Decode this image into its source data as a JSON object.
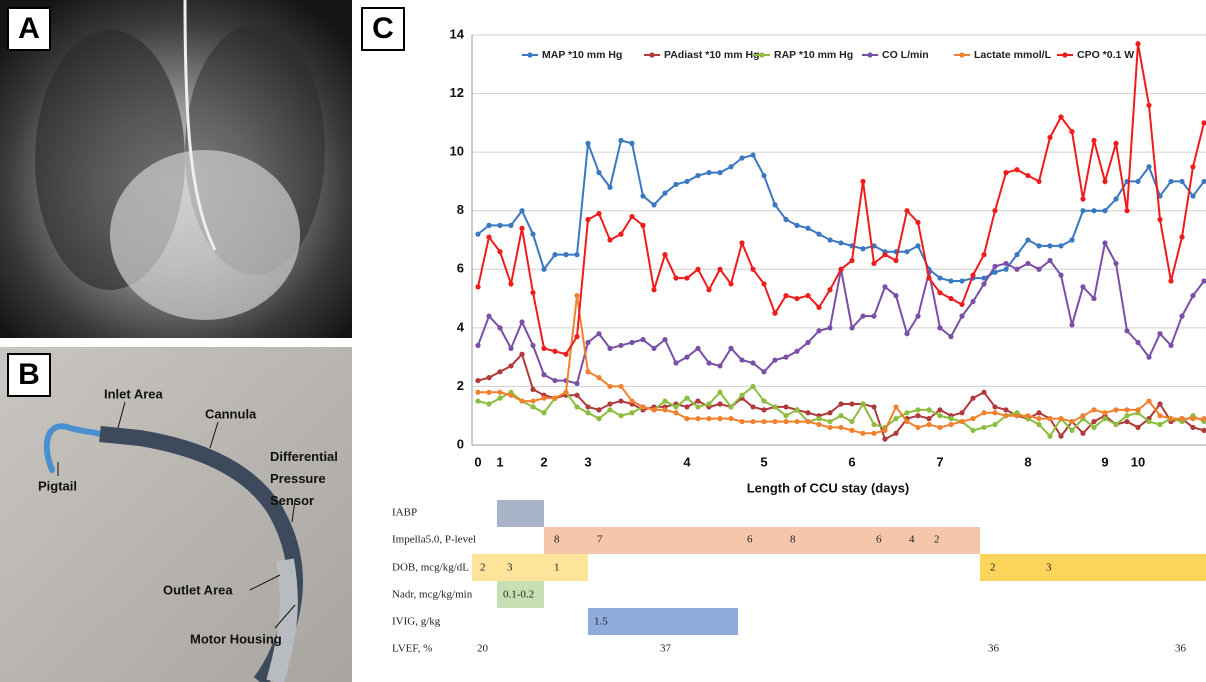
{
  "panels": {
    "a": {
      "label": "A"
    },
    "b": {
      "label": "B",
      "annotations": [
        "Inlet Area",
        "Cannula",
        "Differential Pressure Sensor",
        "Pigtail",
        "Outlet Area",
        "Motor Housing"
      ]
    },
    "c": {
      "label": "C"
    }
  },
  "chart_data": {
    "type": "line",
    "x_label": "Length of CCU stay (days)",
    "categories": [
      "0",
      null,
      "1",
      null,
      null,
      null,
      "2",
      null,
      null,
      null,
      "3",
      null,
      null,
      null,
      null,
      null,
      null,
      null,
      null,
      "4",
      null,
      null,
      null,
      null,
      null,
      null,
      "5",
      null,
      null,
      null,
      null,
      null,
      null,
      null,
      "6",
      null,
      null,
      null,
      null,
      null,
      null,
      null,
      "7",
      null,
      null,
      null,
      null,
      null,
      null,
      null,
      "8",
      null,
      null,
      null,
      null,
      null,
      null,
      "9",
      null,
      null,
      "10",
      null,
      null,
      null,
      null,
      null,
      null
    ],
    "ylim": [
      0,
      14
    ],
    "yticks": [
      0,
      2,
      4,
      6,
      8,
      10,
      12,
      14
    ],
    "grid": true,
    "legend": "top",
    "series": [
      {
        "name": "MAP *10 mm Hg",
        "color": "#3a78c2",
        "values": [
          7.2,
          7.5,
          7.5,
          7.5,
          8.0,
          7.2,
          6.0,
          6.5,
          6.5,
          6.5,
          10.3,
          9.3,
          8.8,
          10.4,
          10.3,
          8.5,
          8.2,
          8.6,
          8.9,
          9.0,
          9.2,
          9.3,
          9.3,
          9.5,
          9.8,
          9.9,
          9.2,
          8.2,
          7.7,
          7.5,
          7.4,
          7.2,
          7.0,
          6.9,
          6.8,
          6.7,
          6.8,
          6.6,
          6.6,
          6.6,
          6.8,
          6.0,
          5.7,
          5.6,
          5.6,
          5.7,
          5.7,
          5.9,
          6.0,
          6.5,
          7.0,
          6.8,
          6.8,
          6.8,
          7.0,
          8.0,
          8.0,
          8.0,
          8.4,
          9.0,
          9.0,
          9.5,
          8.5,
          9.0,
          9.0,
          8.5,
          9.0
        ]
      },
      {
        "name": "PAdiast *10 mm Hg",
        "color": "#b03a3a",
        "values": [
          2.2,
          2.3,
          2.5,
          2.7,
          3.1,
          1.9,
          1.7,
          1.6,
          1.7,
          1.7,
          1.3,
          1.2,
          1.4,
          1.5,
          1.4,
          1.2,
          1.3,
          1.3,
          1.4,
          1.3,
          1.5,
          1.3,
          1.4,
          1.3,
          1.6,
          1.3,
          1.2,
          1.3,
          1.3,
          1.2,
          1.1,
          1.0,
          1.1,
          1.4,
          1.4,
          1.4,
          1.3,
          0.2,
          0.4,
          0.9,
          1.0,
          0.9,
          1.2,
          1.0,
          1.1,
          1.6,
          1.8,
          1.3,
          1.2,
          1.0,
          0.9,
          1.1,
          0.9,
          0.3,
          0.8,
          0.4,
          0.8,
          1.0,
          0.7,
          0.8,
          0.6,
          0.9,
          1.4,
          0.8,
          0.9,
          0.6,
          0.5
        ]
      },
      {
        "name": "RAP *10 mm Hg",
        "color": "#8cbd3f",
        "values": [
          1.5,
          1.4,
          1.6,
          1.8,
          1.5,
          1.3,
          1.1,
          1.6,
          1.8,
          1.3,
          1.1,
          0.9,
          1.2,
          1.0,
          1.1,
          1.3,
          1.2,
          1.5,
          1.3,
          1.6,
          1.3,
          1.4,
          1.8,
          1.3,
          1.7,
          2.0,
          1.5,
          1.3,
          1.0,
          1.2,
          0.8,
          0.9,
          0.8,
          1.0,
          0.8,
          1.4,
          0.7,
          0.6,
          0.9,
          1.1,
          1.2,
          1.2,
          1.0,
          0.9,
          0.8,
          0.5,
          0.6,
          0.7,
          1.0,
          1.1,
          0.9,
          0.7,
          0.3,
          0.9,
          0.5,
          0.9,
          0.6,
          0.9,
          0.7,
          1.0,
          1.1,
          0.8,
          0.7,
          0.9,
          0.8,
          1.0,
          0.8
        ]
      },
      {
        "name": "CO L/min",
        "color": "#7a4fa6",
        "values": [
          3.4,
          4.4,
          4.0,
          3.3,
          4.2,
          3.4,
          2.4,
          2.2,
          2.2,
          2.1,
          3.5,
          3.8,
          3.3,
          3.4,
          3.5,
          3.6,
          3.3,
          3.6,
          2.8,
          3.0,
          3.3,
          2.8,
          2.7,
          3.3,
          2.9,
          2.8,
          2.5,
          2.9,
          3.0,
          3.2,
          3.5,
          3.9,
          4.0,
          6.0,
          4.0,
          4.4,
          4.4,
          5.4,
          5.1,
          3.8,
          4.4,
          5.9,
          4.0,
          3.7,
          4.4,
          4.9,
          5.5,
          6.1,
          6.2,
          6.0,
          6.2,
          6.0,
          6.3,
          5.8,
          4.1,
          5.4,
          5.0,
          6.9,
          6.2,
          3.9,
          3.5,
          3.0,
          3.8,
          3.4,
          4.4,
          5.1,
          5.6
        ]
      },
      {
        "name": "Lactate mmol/L",
        "color": "#f0812e",
        "values": [
          1.8,
          1.8,
          1.8,
          1.7,
          1.5,
          1.5,
          1.6,
          1.6,
          1.8,
          5.1,
          2.5,
          2.3,
          2.0,
          2.0,
          1.5,
          1.3,
          1.2,
          1.2,
          1.1,
          0.9,
          0.9,
          0.9,
          0.9,
          0.9,
          0.8,
          0.8,
          0.8,
          0.8,
          0.8,
          0.8,
          0.8,
          0.7,
          0.6,
          0.6,
          0.5,
          0.4,
          0.4,
          0.5,
          1.3,
          0.8,
          0.6,
          0.7,
          0.6,
          0.7,
          0.8,
          0.9,
          1.1,
          1.1,
          1.0,
          1.0,
          1.0,
          0.9,
          0.9,
          0.9,
          0.8,
          1.0,
          1.2,
          1.1,
          1.2,
          1.2,
          1.2,
          1.5,
          1.0,
          0.9,
          0.9,
          0.9,
          0.9
        ]
      },
      {
        "name": "CPO *0.1 W",
        "color": "#ee1c1c",
        "values": [
          5.4,
          7.1,
          6.6,
          5.5,
          7.4,
          5.2,
          3.3,
          3.2,
          3.1,
          3.7,
          7.7,
          7.9,
          7.0,
          7.2,
          7.8,
          7.5,
          5.3,
          6.5,
          5.7,
          5.7,
          6.0,
          5.3,
          6.0,
          5.5,
          6.9,
          6.0,
          5.5,
          4.5,
          5.1,
          5.0,
          5.1,
          4.7,
          5.3,
          6.0,
          6.3,
          9.0,
          6.2,
          6.5,
          6.3,
          8.0,
          7.6,
          5.7,
          5.2,
          5.0,
          4.8,
          5.8,
          6.5,
          8.0,
          9.3,
          9.4,
          9.2,
          9.0,
          10.5,
          11.2,
          10.7,
          8.4,
          10.4,
          9.0,
          10.3,
          8.0,
          13.7,
          11.6,
          7.7,
          5.6,
          7.1,
          9.5,
          11.0
        ]
      }
    ]
  },
  "timeline": {
    "rows": [
      {
        "label": "IABP"
      },
      {
        "label": "Impella5.0, P-level",
        "entries": [
          "8",
          "7",
          "6",
          "8",
          "6",
          "4",
          "2"
        ]
      },
      {
        "label": "DOB, mcg/kg/dL",
        "entries": [
          "2",
          "3",
          "1",
          "2",
          "3"
        ]
      },
      {
        "label": "Nadr, mcg/kg/min",
        "entries": [
          "0.1-0.2"
        ]
      },
      {
        "label": "IVIG, g/kg",
        "entries": [
          "1.5"
        ]
      },
      {
        "label": "LVEF, %",
        "entries": [
          "20",
          "37",
          "36",
          "36"
        ]
      }
    ]
  }
}
